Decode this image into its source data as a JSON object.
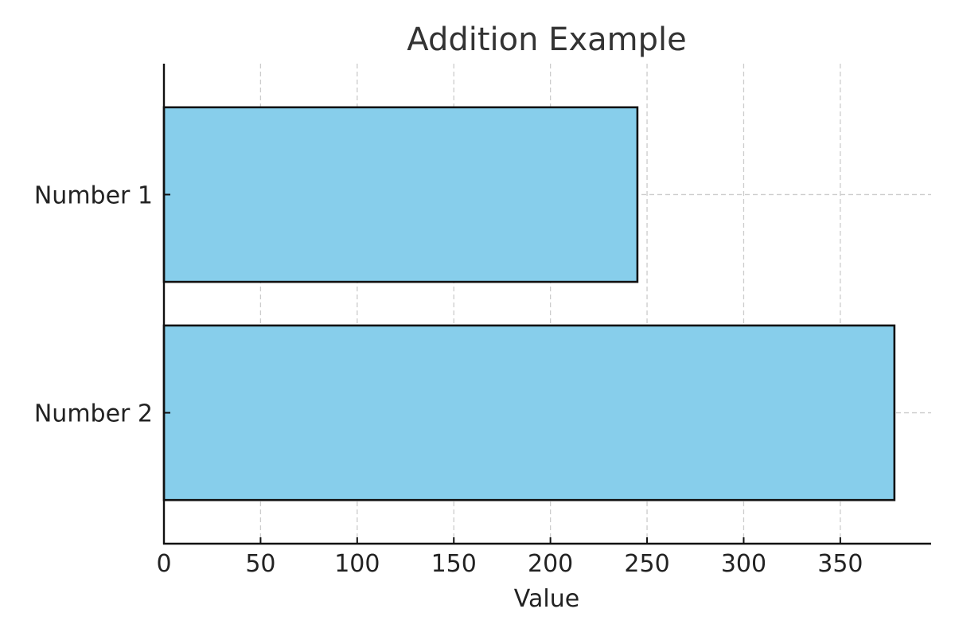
{
  "chart_data": {
    "type": "bar",
    "orientation": "horizontal",
    "title": "Addition Example",
    "xlabel": "Value",
    "ylabel": "",
    "categories": [
      "Number 1",
      "Number 2"
    ],
    "values": [
      245,
      378
    ],
    "xlim": [
      0,
      397
    ],
    "xticks": [
      0,
      50,
      100,
      150,
      200,
      250,
      300,
      350
    ],
    "grid": true,
    "legend": "none",
    "colors": {
      "bar_fill": "#87CEEB",
      "bar_edge": "#111111",
      "grid": "#cccccc",
      "axis": "#111111",
      "title": "#333333",
      "text": "#222222"
    }
  }
}
